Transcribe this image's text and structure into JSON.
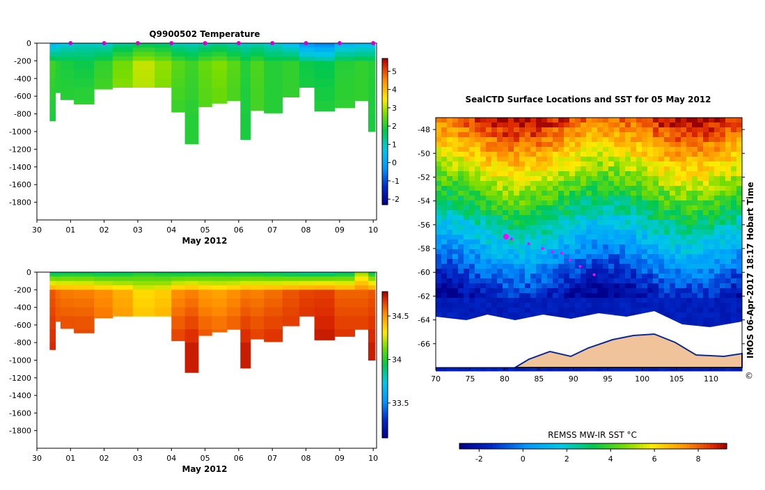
{
  "chart_data": [
    {
      "type": "heatmap",
      "title": "Q9900502  Temperature",
      "xlabel": "May 2012",
      "x_tick_labels": [
        "30",
        "01",
        "02",
        "03",
        "04",
        "05",
        "06",
        "07",
        "08",
        "09",
        "10"
      ],
      "x_range_days": [
        0,
        10.1
      ],
      "ylabel": "",
      "ylim": [
        0,
        -2000
      ],
      "y_ticks": [
        0,
        -200,
        -400,
        -600,
        -800,
        -1000,
        -1200,
        -1400,
        -1600,
        -1800
      ],
      "colorbar": {
        "min": -2.3,
        "max": 5.7,
        "ticks": [
          -2,
          -1,
          0,
          1,
          2,
          3,
          4,
          5
        ]
      },
      "profile_markers_day": [
        1,
        2,
        3,
        4,
        5,
        6,
        7,
        8,
        9,
        10
      ],
      "profiles": [
        {
          "day": 0.5,
          "depth": 880,
          "surface": 0.2,
          "mid": 2.2,
          "deep": 1.9
        },
        {
          "day": 0.6,
          "depth": 560,
          "surface": 0.4,
          "mid": 2.0,
          "deep": 2.0
        },
        {
          "day": 0.8,
          "depth": 640,
          "surface": 0.7,
          "mid": 1.9,
          "deep": 2.1
        },
        {
          "day": 1.4,
          "depth": 690,
          "surface": 0.9,
          "mid": 1.8,
          "deep": 2.2
        },
        {
          "day": 2.0,
          "depth": 520,
          "surface": 0.8,
          "mid": 2.1,
          "deep": 2.4
        },
        {
          "day": 2.5,
          "depth": 500,
          "surface": 1.2,
          "mid": 2.6,
          "deep": 2.9
        },
        {
          "day": 3.2,
          "depth": 500,
          "surface": 1.5,
          "mid": 3.1,
          "deep": 2.9
        },
        {
          "day": 3.8,
          "depth": 500,
          "surface": 1.4,
          "mid": 2.8,
          "deep": 2.6
        },
        {
          "day": 4.2,
          "depth": 780,
          "surface": 1.0,
          "mid": 2.4,
          "deep": 2.1
        },
        {
          "day": 4.6,
          "depth": 1140,
          "surface": 0.9,
          "mid": 2.2,
          "deep": 2.0
        },
        {
          "day": 5.0,
          "depth": 720,
          "surface": 1.1,
          "mid": 2.5,
          "deep": 2.3
        },
        {
          "day": 5.4,
          "depth": 680,
          "surface": 1.2,
          "mid": 2.7,
          "deep": 2.4
        },
        {
          "day": 5.9,
          "depth": 650,
          "surface": 1.0,
          "mid": 2.4,
          "deep": 2.2
        },
        {
          "day": 6.2,
          "depth": 1090,
          "surface": 0.9,
          "mid": 2.0,
          "deep": 1.9
        },
        {
          "day": 6.5,
          "depth": 760,
          "surface": 1.0,
          "mid": 2.3,
          "deep": 2.2
        },
        {
          "day": 7.0,
          "depth": 790,
          "surface": 0.8,
          "mid": 2.0,
          "deep": 2.0
        },
        {
          "day": 7.6,
          "depth": 610,
          "surface": 0.4,
          "mid": 2.1,
          "deep": 2.1
        },
        {
          "day": 8.0,
          "depth": 500,
          "surface": -0.4,
          "mid": 1.8,
          "deep": 2.0
        },
        {
          "day": 8.5,
          "depth": 770,
          "surface": -0.6,
          "mid": 1.7,
          "deep": 2.0
        },
        {
          "day": 9.2,
          "depth": 730,
          "surface": 0.2,
          "mid": 2.0,
          "deep": 2.1
        },
        {
          "day": 9.7,
          "depth": 650,
          "surface": 0.3,
          "mid": 2.1,
          "deep": 2.1
        },
        {
          "day": 10.0,
          "depth": 1000,
          "surface": 0.4,
          "mid": 2.0,
          "deep": 1.9
        }
      ]
    },
    {
      "type": "heatmap",
      "title": "",
      "xlabel": "May 2012",
      "x_tick_labels": [
        "30",
        "01",
        "02",
        "03",
        "04",
        "05",
        "06",
        "07",
        "08",
        "09",
        "10"
      ],
      "x_range_days": [
        0,
        10.1
      ],
      "ylim": [
        0,
        -2000
      ],
      "y_ticks": [
        0,
        -200,
        -400,
        -600,
        -800,
        -1000,
        -1200,
        -1400,
        -1600,
        -1800
      ],
      "colorbar": {
        "min": 33.1,
        "max": 34.78,
        "ticks": [
          33.5,
          34,
          34.5
        ]
      },
      "profiles": [
        {
          "day": 0.5,
          "depth": 880,
          "surface": 33.85,
          "mid": 34.62,
          "deep": 34.7
        },
        {
          "day": 0.6,
          "depth": 560,
          "surface": 33.85,
          "mid": 34.58,
          "deep": 34.66
        },
        {
          "day": 0.8,
          "depth": 640,
          "surface": 33.88,
          "mid": 34.56,
          "deep": 34.68
        },
        {
          "day": 1.4,
          "depth": 690,
          "surface": 33.88,
          "mid": 34.55,
          "deep": 34.68
        },
        {
          "day": 2.0,
          "depth": 520,
          "surface": 33.85,
          "mid": 34.52,
          "deep": 34.62
        },
        {
          "day": 2.5,
          "depth": 500,
          "surface": 33.88,
          "mid": 34.45,
          "deep": 34.55
        },
        {
          "day": 3.2,
          "depth": 500,
          "surface": 33.95,
          "mid": 34.35,
          "deep": 34.45
        },
        {
          "day": 3.8,
          "depth": 500,
          "surface": 33.92,
          "mid": 34.38,
          "deep": 34.5
        },
        {
          "day": 4.2,
          "depth": 780,
          "surface": 33.88,
          "mid": 34.52,
          "deep": 34.68
        },
        {
          "day": 4.6,
          "depth": 1140,
          "surface": 33.88,
          "mid": 34.55,
          "deep": 34.72
        },
        {
          "day": 5.0,
          "depth": 720,
          "surface": 33.9,
          "mid": 34.5,
          "deep": 34.66
        },
        {
          "day": 5.4,
          "depth": 680,
          "surface": 33.9,
          "mid": 34.48,
          "deep": 34.64
        },
        {
          "day": 5.9,
          "depth": 650,
          "surface": 33.88,
          "mid": 34.52,
          "deep": 34.66
        },
        {
          "day": 6.2,
          "depth": 1090,
          "surface": 33.88,
          "mid": 34.56,
          "deep": 34.72
        },
        {
          "day": 6.5,
          "depth": 760,
          "surface": 33.88,
          "mid": 34.55,
          "deep": 34.68
        },
        {
          "day": 7.0,
          "depth": 790,
          "surface": 33.85,
          "mid": 34.58,
          "deep": 34.7
        },
        {
          "day": 7.6,
          "depth": 610,
          "surface": 33.82,
          "mid": 34.62,
          "deep": 34.7
        },
        {
          "day": 8.0,
          "depth": 500,
          "surface": 33.8,
          "mid": 34.65,
          "deep": 34.72
        },
        {
          "day": 8.5,
          "depth": 770,
          "surface": 33.8,
          "mid": 34.66,
          "deep": 34.74
        },
        {
          "day": 9.2,
          "depth": 730,
          "surface": 33.85,
          "mid": 34.6,
          "deep": 34.7
        },
        {
          "day": 9.7,
          "depth": 650,
          "surface": 34.15,
          "mid": 34.6,
          "deep": 34.7
        },
        {
          "day": 10.0,
          "depth": 1000,
          "surface": 33.88,
          "mid": 34.62,
          "deep": 34.72
        }
      ]
    },
    {
      "type": "heatmap",
      "title": "SealCTD Surface Locations and SST for 05 May 2012",
      "xlabel": "",
      "x_ticks": [
        70,
        75,
        80,
        85,
        90,
        95,
        100,
        105,
        110
      ],
      "y_ticks": [
        -48,
        -50,
        -52,
        -54,
        -56,
        -58,
        -60,
        -62,
        -64,
        -66
      ],
      "lon_range": [
        70,
        114.5
      ],
      "lat_range": [
        -47,
        -68
      ],
      "colorbar": {
        "label": "REMSS MW-IR SST °C",
        "min": -2.9,
        "max": 9.3,
        "ticks": [
          -2,
          0,
          2,
          4,
          6,
          8
        ]
      },
      "seal_track": [
        {
          "lon": 80.2,
          "lat": -57.0
        },
        {
          "lon": 81.0,
          "lat": -57.2
        },
        {
          "lon": 83.5,
          "lat": -57.6
        },
        {
          "lon": 85.5,
          "lat": -58.0
        },
        {
          "lon": 87.0,
          "lat": -58.3
        },
        {
          "lon": 88.3,
          "lat": -58.4
        },
        {
          "lon": 89.5,
          "lat": -59.0
        },
        {
          "lon": 91.0,
          "lat": -59.5
        },
        {
          "lon": 93.0,
          "lat": -60.2
        }
      ],
      "current_position": {
        "lon": 80.2,
        "lat": -57.0
      },
      "side_label": "IMOS 06-Apr-2017 18:17 Hobart Time"
    }
  ],
  "stamp": "©"
}
